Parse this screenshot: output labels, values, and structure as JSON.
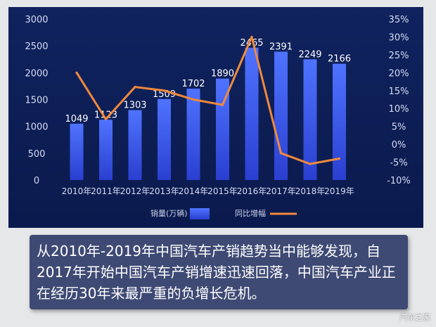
{
  "chart_data": {
    "type": "bar",
    "categories": [
      "2010年",
      "2011年",
      "2012年",
      "2013年",
      "2014年",
      "2015年",
      "2016年",
      "2017年",
      "2018年",
      "2019年"
    ],
    "series": [
      {
        "name": "销量(万辆)",
        "type": "bar",
        "axis": "left",
        "values": [
          1049,
          1123,
          1303,
          1509,
          1702,
          1890,
          2465,
          2391,
          2249,
          2166
        ]
      },
      {
        "name": "同比增幅",
        "type": "line",
        "axis": "right",
        "values": [
          20,
          7,
          16,
          15,
          12.5,
          11,
          30,
          -2.5,
          -5.5,
          -4
        ]
      }
    ],
    "y_left": {
      "ticks": [
        "0",
        "500",
        "1000",
        "1500",
        "2000",
        "2500",
        "3000"
      ],
      "ylim": [
        0,
        3000
      ]
    },
    "y_right": {
      "ticks": [
        "-10%",
        "-5%",
        "0%",
        "5%",
        "10%",
        "15%",
        "20%",
        "25%",
        "30%",
        "35%"
      ],
      "ylim": [
        -10,
        35
      ]
    },
    "legend": {
      "placement": "bottom"
    },
    "colors": {
      "bar_top": "#4f73ff",
      "bar_bottom": "#2a3fd0",
      "line": "#f0893c"
    }
  },
  "caption": "从2010年-2019年中国汽车产销趋势当中能够发现，自2017年开始中国汽车产销增速迅速回落，中国汽车产业正在经历30年来最严重的负增长危机。",
  "watermark": "汽车之家"
}
